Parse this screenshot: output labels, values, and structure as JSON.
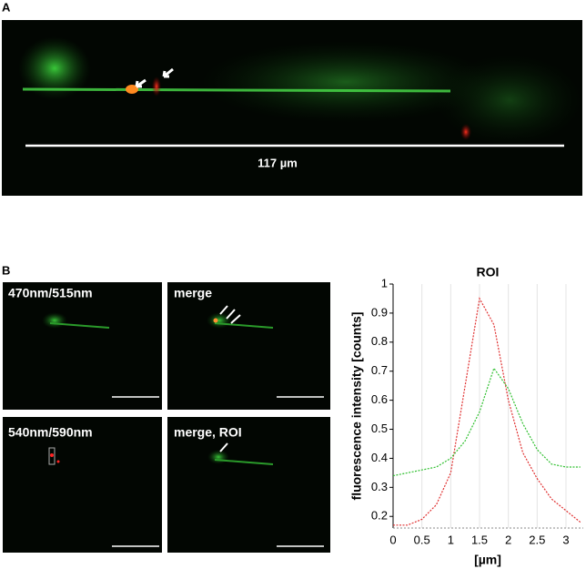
{
  "figure": {
    "panel_a": {
      "label": "A",
      "scale": "117 µm"
    },
    "panel_b": {
      "label": "B",
      "images": [
        "470nm/515nm",
        "merge",
        "540nm/590nm",
        "merge, ROI"
      ]
    }
  },
  "chart_data": {
    "type": "line",
    "title": "ROI",
    "x_label": "[µm]",
    "y_label": "fluorescence intensity [counts]",
    "x": [
      0,
      0.25,
      0.5,
      0.75,
      1.0,
      1.25,
      1.5,
      1.75,
      2.0,
      2.25,
      2.5,
      2.75,
      3.0,
      3.25
    ],
    "series": [
      {
        "name": "540nm/590nm",
        "color": "#e03030",
        "values": [
          0.17,
          0.17,
          0.19,
          0.24,
          0.35,
          0.65,
          0.95,
          0.86,
          0.6,
          0.42,
          0.33,
          0.26,
          0.22,
          0.18
        ]
      },
      {
        "name": "470nm/515nm",
        "color": "#30c030",
        "values": [
          0.34,
          0.35,
          0.36,
          0.37,
          0.4,
          0.46,
          0.56,
          0.71,
          0.64,
          0.52,
          0.43,
          0.38,
          0.37,
          0.37
        ]
      }
    ],
    "xlim": [
      0,
      3.3
    ],
    "ylim": [
      0.16,
      1.0
    ],
    "xticks": [
      0,
      0.5,
      1.0,
      1.5,
      2.0,
      2.5,
      3.0
    ],
    "yticks": [
      0.2,
      0.3,
      0.4,
      0.5,
      0.6,
      0.7,
      0.8,
      0.9,
      1.0
    ],
    "grid": true
  }
}
